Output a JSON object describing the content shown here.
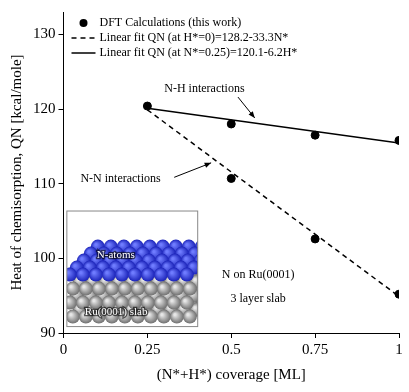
{
  "chart_data": {
    "type": "scatter",
    "x_label": "(N*+H*) coverage [ML]",
    "y_label": "Heat of chemisorption, QN [kcal/mole]",
    "series": [
      {
        "name": "DFT Calculations (this work)",
        "type": "scatter",
        "marker": "circle",
        "color": "#000000",
        "x": [
          0.25,
          0.5,
          0.75,
          1,
          0.5,
          0.75,
          1
        ],
        "values": [
          120.4,
          118.0,
          116.5,
          115.8,
          110.7,
          102.6,
          95.2
        ]
      },
      {
        "name": "Linear fit QN (at H*=0)=128.2-33.3N*",
        "type": "line",
        "line_style": "dashed",
        "color": "#000000",
        "x": [
          0.25,
          1
        ],
        "values": [
          119.9,
          94.9
        ]
      },
      {
        "name": "Linear fit QN (at N*=0.25)=120.1-6.2H*",
        "type": "line",
        "line_style": "solid",
        "color": "#000000",
        "x": [
          0.25,
          1
        ],
        "values": [
          120.1,
          115.45
        ]
      }
    ],
    "xlim": [
      0,
      1
    ],
    "xticks": [
      0,
      0.25,
      0.5,
      0.75,
      1
    ],
    "ylim": [
      90,
      133
    ],
    "yticks": [
      90,
      100,
      110,
      120,
      130
    ],
    "grid": false,
    "legend": "upper left",
    "annotations": [
      "N-H interactions",
      "N-N interactions",
      "N-atoms",
      "Ru(0001) slab",
      "N on Ru(0001)",
      "3 layer slab"
    ]
  }
}
